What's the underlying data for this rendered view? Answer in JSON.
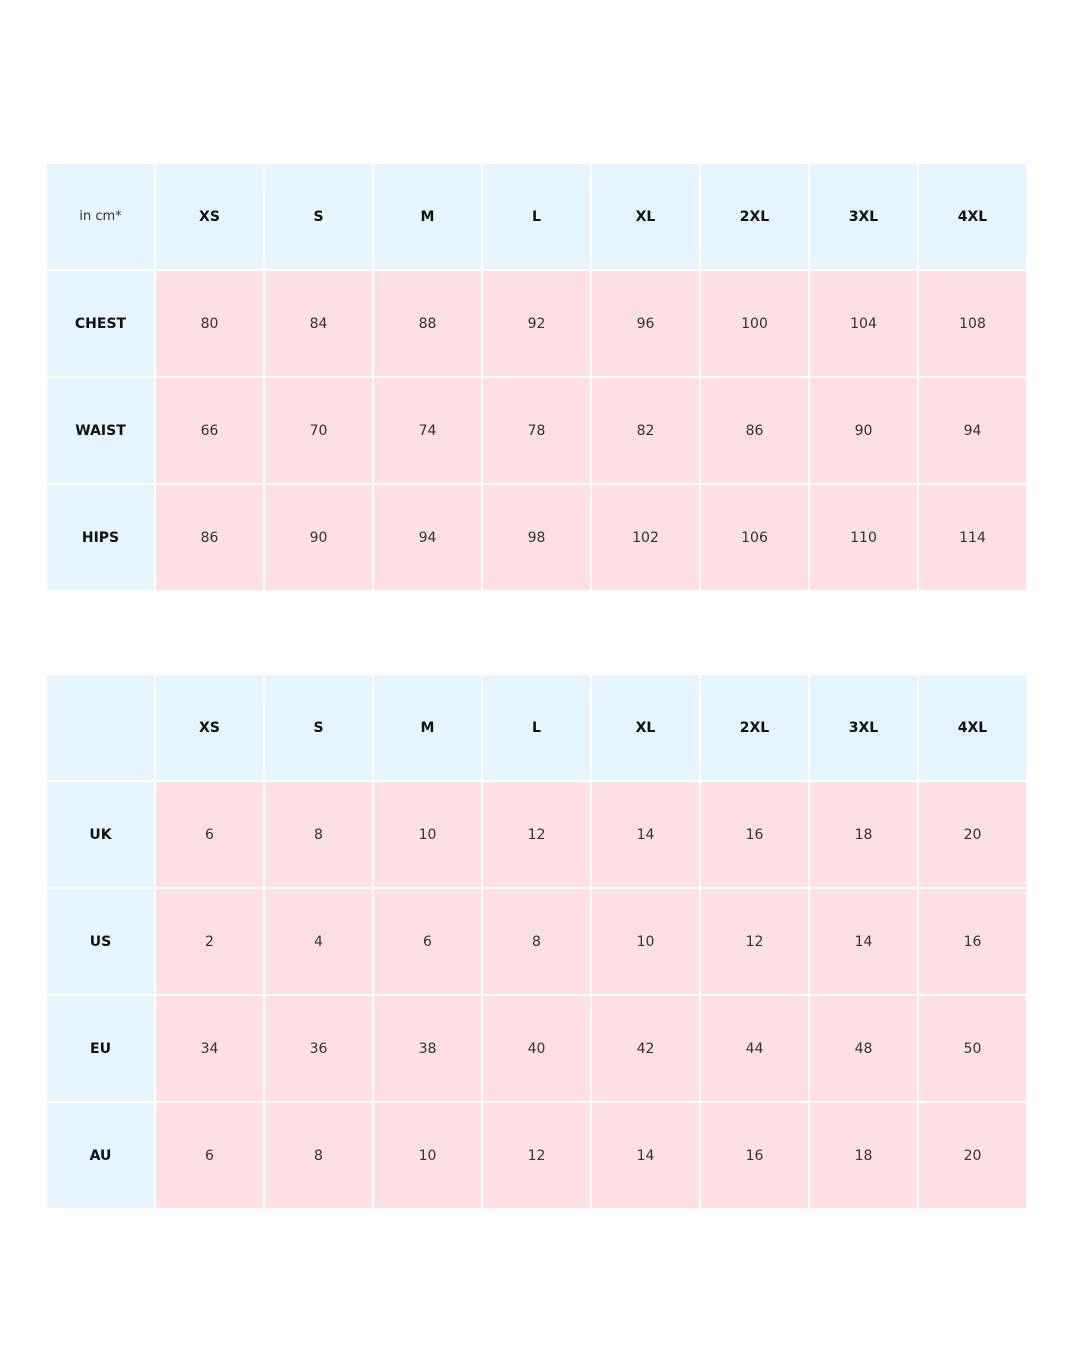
{
  "colors": {
    "header_bg": "#e5f4fd",
    "cell_bg": "#fde0e2"
  },
  "measurements": {
    "unit_label": "in cm*",
    "sizes": [
      "XS",
      "S",
      "M",
      "L",
      "XL",
      "2XL",
      "3XL",
      "4XL"
    ],
    "rows": [
      {
        "label": "CHEST",
        "values": [
          "80",
          "84",
          "88",
          "92",
          "96",
          "100",
          "104",
          "108"
        ]
      },
      {
        "label": "WAIST",
        "values": [
          "66",
          "70",
          "74",
          "78",
          "82",
          "86",
          "90",
          "94"
        ]
      },
      {
        "label": "HIPS",
        "values": [
          "86",
          "90",
          "94",
          "98",
          "102",
          "106",
          "110",
          "114"
        ]
      }
    ]
  },
  "conversions": {
    "corner_label": "",
    "sizes": [
      "XS",
      "S",
      "M",
      "L",
      "XL",
      "2XL",
      "3XL",
      "4XL"
    ],
    "rows": [
      {
        "label": "UK",
        "values": [
          "6",
          "8",
          "10",
          "12",
          "14",
          "16",
          "18",
          "20"
        ]
      },
      {
        "label": "US",
        "values": [
          "2",
          "4",
          "6",
          "8",
          "10",
          "12",
          "14",
          "16"
        ]
      },
      {
        "label": "EU",
        "values": [
          "34",
          "36",
          "38",
          "40",
          "42",
          "44",
          "48",
          "50"
        ]
      },
      {
        "label": "AU",
        "values": [
          "6",
          "8",
          "10",
          "12",
          "14",
          "16",
          "18",
          "20"
        ]
      }
    ]
  }
}
